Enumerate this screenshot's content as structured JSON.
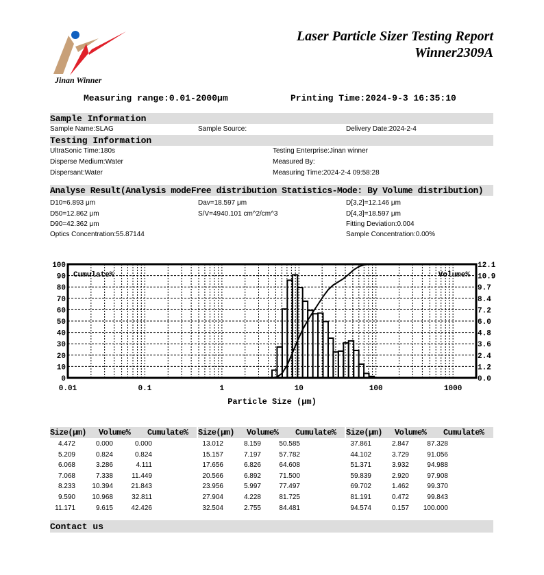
{
  "header": {
    "logo_text": "Jinan Winner",
    "title_line1": "Laser Particle Sizer Testing Report",
    "title_line2": "Winner2309A",
    "measuring_range": "Measuring range:0.01-2000μm",
    "printing_time": "Printing Time:2024-9-3 16:35:10"
  },
  "sample_info": {
    "heading": "Sample Information",
    "sample_name": "Sample Name:SLAG",
    "sample_source": "Sample Source:",
    "delivery_date": "Delivery Date:2024-2-4"
  },
  "testing_info": {
    "heading": "Testing Information",
    "ultrasonic_time": "UltraSonic Time:180s",
    "disperse_medium": "Disperse Medium:Water",
    "dispersant": "Dispersant:Water",
    "testing_enterprise": "Testing Enterprise:Jinan winner",
    "measured_by": "Measured By:",
    "measuring_time": "Measuring Time:2024-2-4 09:58:28"
  },
  "analyse_result": {
    "heading": "Analyse Result(Analysis modeFree distribution  Statistics-Mode: By Volume distribution)",
    "d10": "D10=6.893 μm",
    "d50": "D50=12.862 μm",
    "d90": "D90=42.362 μm",
    "optics_concentration": "Optics Concentration:55.87144",
    "dav": "Dav=18.597 μm",
    "sv": "S/V=4940.101 cm^2/cm^3",
    "d32": "D[3,2]=12.146 μm",
    "d43": "D[4,3]=18.597 μm",
    "fitting_deviation": "Fitting Deviation:0.004",
    "sample_concentration": "Sample Concentration:0.00%"
  },
  "chart_data": {
    "type": "bar+line",
    "xlabel": "Particle Size (μm)",
    "left_label": "Cumulate%",
    "right_label": "Volume%",
    "x_scale": "log",
    "xlim": [
      0.01,
      2000
    ],
    "x_ticks": [
      "0.01",
      "0.1",
      "1",
      "10",
      "100",
      "1000"
    ],
    "y_left_lim": [
      0,
      100
    ],
    "y_left_ticks": [
      "0",
      "10",
      "20",
      "30",
      "40",
      "50",
      "60",
      "70",
      "80",
      "90",
      "100"
    ],
    "y_right_lim": [
      0,
      12.1
    ],
    "y_right_ticks": [
      "0.0",
      "1.2",
      "2.4",
      "3.6",
      "4.8",
      "6.0",
      "7.2",
      "8.4",
      "9.7",
      "10.9",
      "12.1"
    ],
    "grid": true,
    "sizes": [
      4.472,
      5.209,
      6.068,
      7.068,
      8.233,
      9.59,
      11.171,
      13.012,
      15.157,
      17.656,
      20.566,
      23.956,
      27.904,
      32.504,
      37.861,
      44.102,
      51.371,
      59.839,
      69.702,
      81.191,
      94.574
    ],
    "volume": [
      0.0,
      0.824,
      3.286,
      7.338,
      10.394,
      10.968,
      9.615,
      8.159,
      7.197,
      6.826,
      6.892,
      5.997,
      4.228,
      2.755,
      2.847,
      3.729,
      3.932,
      2.92,
      1.462,
      0.472,
      0.157
    ],
    "cumulate": [
      0.0,
      0.824,
      4.111,
      11.449,
      21.843,
      32.811,
      42.426,
      50.585,
      57.782,
      64.608,
      71.5,
      77.497,
      81.725,
      84.481,
      87.328,
      91.056,
      94.988,
      97.908,
      99.37,
      99.843,
      100.0
    ]
  },
  "table": {
    "headers": [
      "Size(μm)",
      "Volume%",
      "Cumulate%"
    ],
    "groups": [
      [
        [
          "4.472",
          "0.000",
          "0.000"
        ],
        [
          "5.209",
          "0.824",
          "0.824"
        ],
        [
          "6.068",
          "3.286",
          "4.111"
        ],
        [
          "7.068",
          "7.338",
          "11.449"
        ],
        [
          "8.233",
          "10.394",
          "21.843"
        ],
        [
          "9.590",
          "10.968",
          "32.811"
        ],
        [
          "11.171",
          "9.615",
          "42.426"
        ]
      ],
      [
        [
          "13.012",
          "8.159",
          "50.585"
        ],
        [
          "15.157",
          "7.197",
          "57.782"
        ],
        [
          "17.656",
          "6.826",
          "64.608"
        ],
        [
          "20.566",
          "6.892",
          "71.500"
        ],
        [
          "23.956",
          "5.997",
          "77.497"
        ],
        [
          "27.904",
          "4.228",
          "81.725"
        ],
        [
          "32.504",
          "2.755",
          "84.481"
        ]
      ],
      [
        [
          "37.861",
          "2.847",
          "87.328"
        ],
        [
          "44.102",
          "3.729",
          "91.056"
        ],
        [
          "51.371",
          "3.932",
          "94.988"
        ],
        [
          "59.839",
          "2.920",
          "97.908"
        ],
        [
          "69.702",
          "1.462",
          "99.370"
        ],
        [
          "81.191",
          "0.472",
          "99.843"
        ],
        [
          "94.574",
          "0.157",
          "100.000"
        ]
      ]
    ]
  },
  "contact": {
    "heading": "Contact us"
  },
  "colors": {
    "logo_red": "#e0202a",
    "logo_tan": "#c8a078",
    "logo_blue": "#1060c0",
    "section_bar": "#dddddd"
  }
}
